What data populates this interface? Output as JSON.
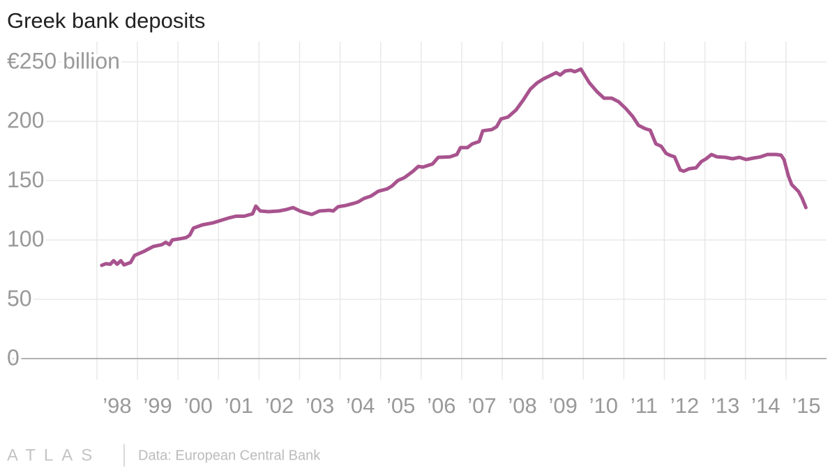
{
  "chart_data": {
    "type": "line",
    "title": "Greek bank deposits",
    "x": [
      1998.12,
      1998.22,
      1998.33,
      1998.41,
      1998.5,
      1998.59,
      1998.67,
      1998.83,
      1998.93,
      1999.14,
      1999.39,
      1999.6,
      1999.7,
      1999.79,
      1999.86,
      2000.05,
      2000.2,
      2000.29,
      2000.38,
      2000.6,
      2000.86,
      2001.08,
      2001.25,
      2001.43,
      2001.63,
      2001.84,
      2001.92,
      2002.03,
      2002.23,
      2002.49,
      2002.67,
      2002.84,
      2003.01,
      2003.18,
      2003.3,
      2003.49,
      2003.74,
      2003.83,
      2003.95,
      2004.13,
      2004.35,
      2004.44,
      2004.59,
      2004.76,
      2004.94,
      2005.16,
      2005.28,
      2005.42,
      2005.59,
      2005.8,
      2005.93,
      2006.04,
      2006.28,
      2006.42,
      2006.71,
      2006.88,
      2006.97,
      2007.14,
      2007.26,
      2007.43,
      2007.52,
      2007.74,
      2007.86,
      2007.97,
      2008.14,
      2008.34,
      2008.52,
      2008.69,
      2008.86,
      2009.03,
      2009.2,
      2009.33,
      2009.43,
      2009.55,
      2009.69,
      2009.79,
      2009.94,
      2010.15,
      2010.34,
      2010.51,
      2010.7,
      2010.87,
      2011.05,
      2011.22,
      2011.36,
      2011.53,
      2011.65,
      2011.79,
      2011.92,
      2012.04,
      2012.13,
      2012.25,
      2012.39,
      2012.48,
      2012.61,
      2012.78,
      2012.91,
      2013.03,
      2013.16,
      2013.3,
      2013.51,
      2013.68,
      2013.85,
      2014.02,
      2014.2,
      2014.37,
      2014.54,
      2014.76,
      2014.88,
      2014.95,
      2015.06,
      2015.14,
      2015.31,
      2015.4,
      2015.49
    ],
    "values": [
      78.6,
      80,
      79.5,
      82.5,
      79.5,
      82.5,
      79,
      81,
      87,
      90,
      94.5,
      96,
      98,
      96,
      100,
      101,
      102,
      104,
      110,
      112.7,
      114.4,
      116.7,
      118.5,
      120,
      120,
      122,
      128.5,
      124.4,
      123.8,
      124.4,
      125.6,
      127.3,
      124.4,
      122.6,
      121.5,
      124.4,
      125,
      124.4,
      128,
      129,
      131,
      132,
      135,
      137,
      141,
      143,
      145.5,
      150,
      152.6,
      157.9,
      162,
      161.4,
      164,
      169.6,
      170,
      172,
      177.8,
      177.8,
      181,
      183,
      192,
      193,
      195.4,
      202,
      203.6,
      209.5,
      218,
      227,
      232.4,
      236,
      238.8,
      241,
      239,
      242.4,
      243,
      241.8,
      244,
      232.4,
      224.8,
      219.5,
      219.5,
      216.5,
      210.7,
      204,
      196.6,
      193.7,
      192.5,
      181,
      179,
      173,
      171.4,
      170,
      159,
      157.9,
      160,
      160.8,
      166,
      168.4,
      172,
      170,
      169.6,
      168.4,
      169.6,
      167.8,
      169,
      170,
      172,
      172,
      171.4,
      167.8,
      153.8,
      146.7,
      140.8,
      135,
      127.3
    ],
    "color": "#a8538e",
    "xlim": [
      1995.85,
      2016
    ],
    "xticks": [
      {
        "value": 1998,
        "label": "’98"
      },
      {
        "value": 1999,
        "label": "’99"
      },
      {
        "value": 2000,
        "label": "’00"
      },
      {
        "value": 2001,
        "label": "’01"
      },
      {
        "value": 2002,
        "label": "’02"
      },
      {
        "value": 2003,
        "label": "’03"
      },
      {
        "value": 2004,
        "label": "’04"
      },
      {
        "value": 2005,
        "label": "’05"
      },
      {
        "value": 2006,
        "label": "’06"
      },
      {
        "value": 2007,
        "label": "’07"
      },
      {
        "value": 2008,
        "label": "’08"
      },
      {
        "value": 2009,
        "label": "’09"
      },
      {
        "value": 2010,
        "label": "’10"
      },
      {
        "value": 2011,
        "label": "’11"
      },
      {
        "value": 2012,
        "label": "’12"
      },
      {
        "value": 2013,
        "label": "’13"
      },
      {
        "value": 2014,
        "label": "’14"
      },
      {
        "value": 2015,
        "label": "’15"
      }
    ],
    "ylim": [
      0,
      250
    ],
    "yticks": [
      0,
      50,
      100,
      150,
      200,
      {
        "value": 250,
        "label": "€250 billion"
      }
    ],
    "grid": true
  },
  "footer": {
    "brand": "ATLAS",
    "source": "Data: European Central Bank"
  }
}
